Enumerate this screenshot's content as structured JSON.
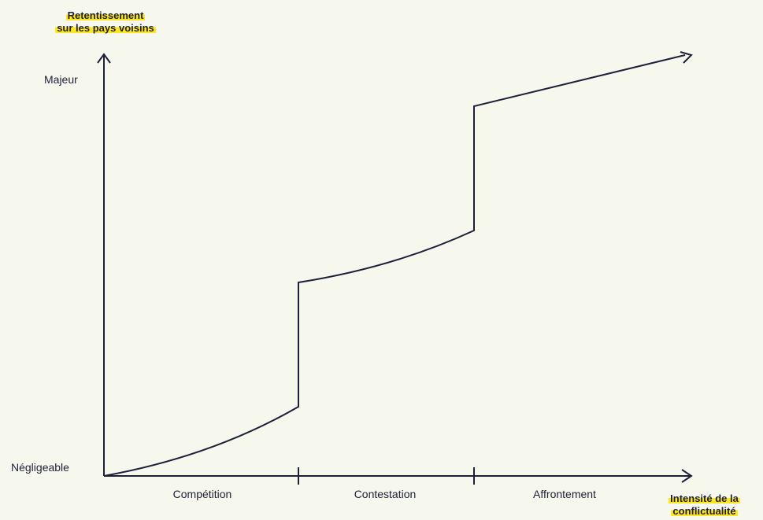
{
  "y_axis": {
    "title_line1": "Retentissement",
    "title_line2": "sur les pays voisins",
    "level_high": "Majeur",
    "level_low": "Négligeable"
  },
  "x_axis": {
    "title_line1": "Intensité de la",
    "title_line2": "conflictualité"
  },
  "categories": [
    "Compétition",
    "Contestation",
    "Affrontement"
  ],
  "colors": {
    "line": "#1d2038",
    "background": "#f6f8ee",
    "highlight": "#ffe61f"
  }
}
